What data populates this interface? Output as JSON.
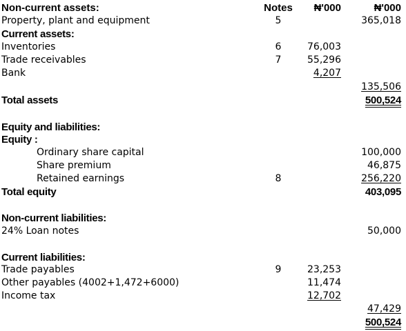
{
  "header": {
    "section_label": "Non-current assets:",
    "notes": "Notes",
    "col1": "₦'000",
    "col2": "₦'000"
  },
  "lines": {
    "ppe": {
      "label": "Property, plant and equipment",
      "note": "5",
      "col2": "365,018"
    },
    "current_assets": {
      "label": "Current assets:"
    },
    "inventories": {
      "label": "Inventories",
      "note": "6",
      "col1": "76,003"
    },
    "trade_receivables": {
      "label": "Trade receivables",
      "note": "7",
      "col1": "55,296"
    },
    "bank": {
      "label": "Bank",
      "col1": "4,207"
    },
    "current_total": {
      "col2": "135,506"
    },
    "total_assets": {
      "label": "Total assets",
      "col2": "500,524"
    },
    "equity_liabilities": {
      "label": "Equity and liabilities:"
    },
    "equity": {
      "label": "Equity :"
    },
    "share_capital": {
      "label": "Ordinary share capital",
      "col2": "100,000"
    },
    "share_premium": {
      "label": "Share premium",
      "col2": "46,875"
    },
    "retained_earnings": {
      "label": "Retained earnings",
      "note": "8",
      "col2": "256,220"
    },
    "total_equity": {
      "label": "Total equity",
      "col2": "403,095"
    },
    "ncl": {
      "label": "Non-current liabilities:"
    },
    "loan_notes": {
      "label": "24% Loan notes",
      "col2": "50,000"
    },
    "cl": {
      "label": "Current liabilities:"
    },
    "trade_payables": {
      "label": "Trade payables",
      "note": "9",
      "col1": "23,253"
    },
    "other_payables": {
      "label": "Other payables (4002+1,472+6000)",
      "col1": "11,474"
    },
    "income_tax": {
      "label": "Income tax",
      "col1": "12,702"
    },
    "cl_total": {
      "col2": "47,429"
    },
    "grand_total": {
      "col2": "500,524"
    }
  }
}
